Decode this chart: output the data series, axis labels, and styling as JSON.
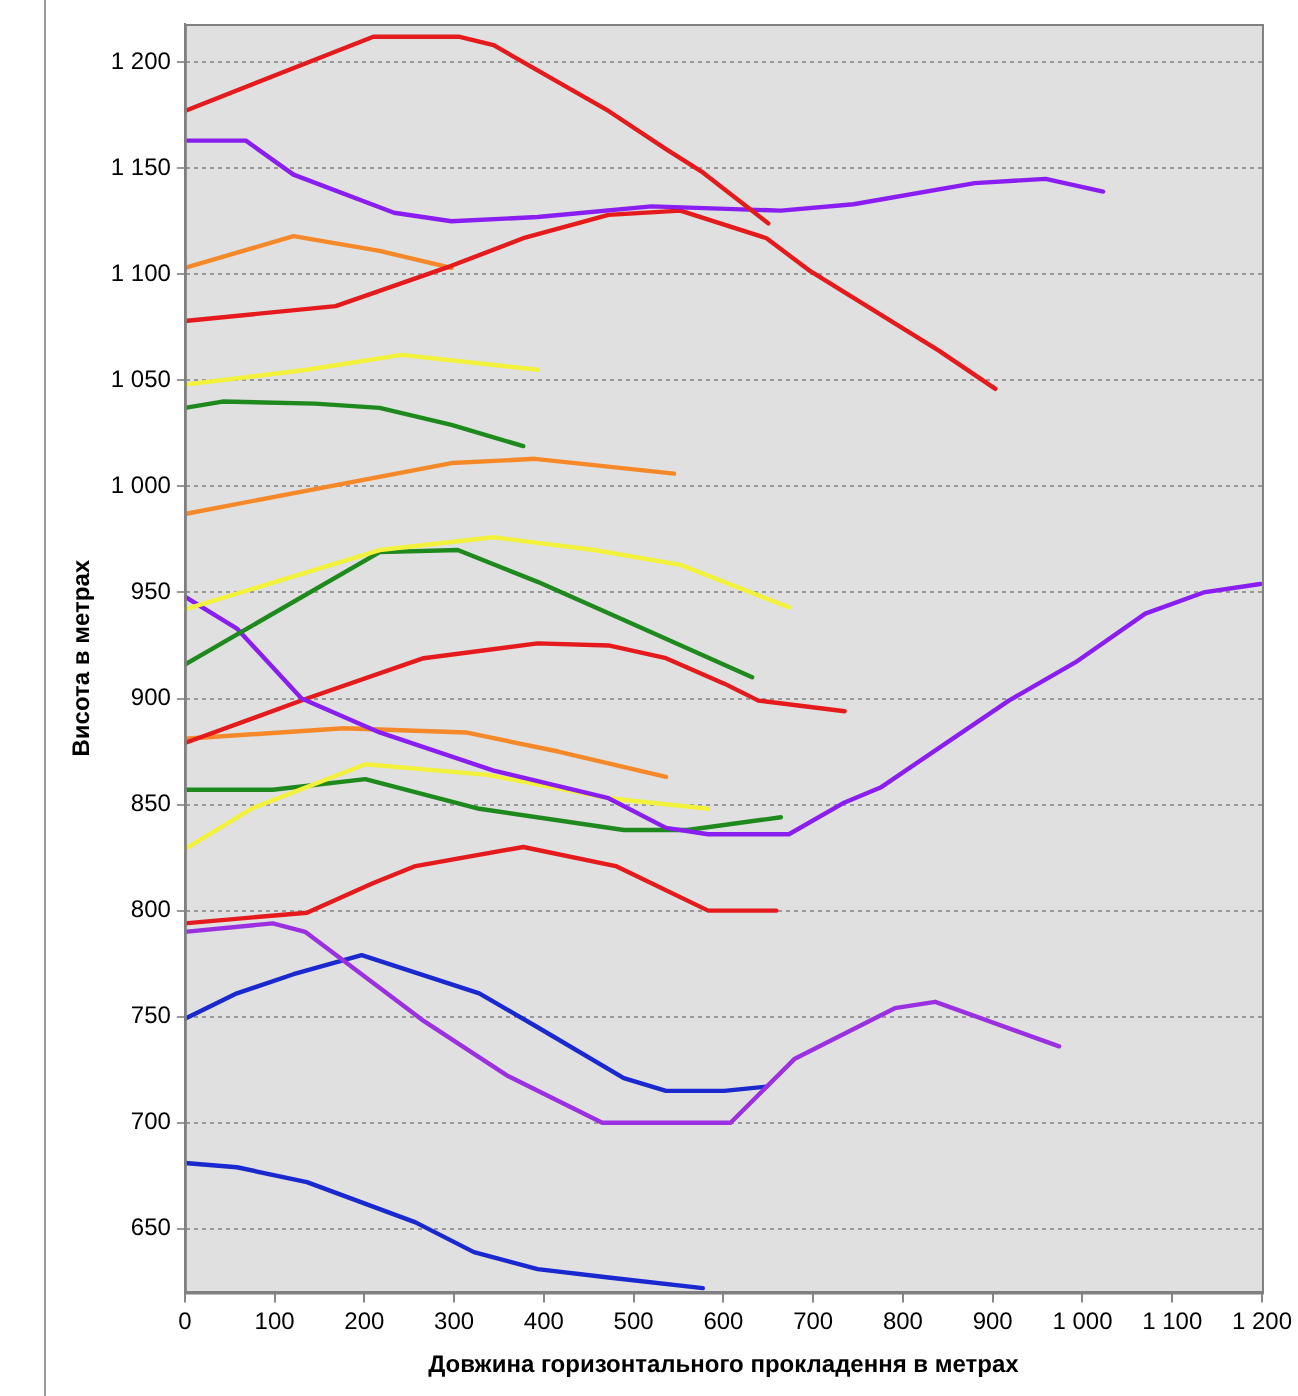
{
  "chart_data": {
    "type": "line",
    "xlabel": "Довжина горизонтального прокладення в метрах",
    "ylabel": "Висота в метрах",
    "xlim": [
      0,
      1200
    ],
    "ylim": [
      620,
      1218
    ],
    "xticks": [
      0,
      100,
      200,
      300,
      400,
      500,
      600,
      700,
      800,
      900,
      {
        "value": 1000,
        "label": "1 000"
      },
      {
        "value": 1100,
        "label": "1 100"
      },
      {
        "value": 1200,
        "label": "1 200"
      }
    ],
    "yticks": [
      650,
      700,
      750,
      800,
      850,
      900,
      950,
      {
        "value": 1000,
        "label": "1 000"
      },
      {
        "value": 1050,
        "label": "1 050"
      },
      {
        "value": 1100,
        "label": "1 100"
      },
      {
        "value": 1150,
        "label": "1 150"
      },
      {
        "value": 1200,
        "label": "1 200"
      }
    ],
    "grid": "y",
    "legend": false,
    "marker": "none",
    "line_style": "solid",
    "series": [
      {
        "color": "#e41a1c",
        "x": [
          0,
          210,
          305,
          344,
          472,
          536,
          577,
          650
        ],
        "values": [
          1177,
          1212,
          1212,
          1208,
          1177,
          1159,
          1148,
          1124
        ]
      },
      {
        "color": "#8a1ef0",
        "x": [
          0,
          68,
          121,
          233,
          297,
          393,
          520,
          664,
          745,
          880,
          959,
          1023
        ],
        "values": [
          1163,
          1163,
          1147,
          1129,
          1125,
          1127,
          1132,
          1130,
          1133,
          1143,
          1145,
          1139
        ]
      },
      {
        "color": "#e41a1c",
        "x": [
          0,
          168,
          297,
          377,
          472,
          552,
          648,
          695,
          840,
          903
        ],
        "values": [
          1078,
          1085,
          1104,
          1117,
          1128,
          1130,
          1117,
          1102,
          1064,
          1046
        ]
      },
      {
        "color": "#f5892a",
        "x": [
          0,
          121,
          217,
          297
        ],
        "values": [
          1103,
          1118,
          1111,
          1103
        ]
      },
      {
        "color": "#f2f23c",
        "x": [
          0,
          136,
          241,
          393
        ],
        "values": [
          1048,
          1055,
          1062,
          1055
        ]
      },
      {
        "color": "#1e8a1e",
        "x": [
          0,
          42,
          145,
          217,
          297,
          377
        ],
        "values": [
          1037,
          1040,
          1039,
          1037,
          1029,
          1019
        ]
      },
      {
        "color": "#f5892a",
        "x": [
          0,
          297,
          390,
          545
        ],
        "values": [
          987,
          1011,
          1013,
          1006
        ]
      },
      {
        "color": "#f2f23c",
        "x": [
          0,
          217,
          344,
          456,
          552,
          673
        ],
        "values": [
          942,
          970,
          976,
          970,
          963,
          943
        ]
      },
      {
        "color": "#1e8a1e",
        "x": [
          0,
          217,
          304,
          393,
          489,
          632
        ],
        "values": [
          916,
          969,
          970,
          955,
          937,
          910
        ]
      },
      {
        "color": "#8a1ef0",
        "x": [
          0,
          58,
          130,
          217,
          344,
          472,
          536,
          583,
          673,
          735,
          775,
          918,
          992,
          1070,
          1135,
          1198
        ],
        "values": [
          948,
          933,
          900,
          884,
          866,
          853,
          839,
          836,
          836,
          851,
          858,
          899,
          917,
          940,
          950,
          954
        ]
      },
      {
        "color": "#e41a1c",
        "x": [
          0,
          136,
          266,
          393,
          472,
          536,
          601,
          639,
          735
        ],
        "values": [
          879,
          900,
          919,
          926,
          925,
          919,
          907,
          899,
          894
        ]
      },
      {
        "color": "#f5892a",
        "x": [
          0,
          177,
          313,
          416,
          536
        ],
        "values": [
          881,
          886,
          884,
          875,
          863
        ]
      },
      {
        "color": "#f2f23c",
        "x": [
          0,
          74,
          201,
          337,
          472,
          583
        ],
        "values": [
          829,
          848,
          869,
          864,
          853,
          848
        ]
      },
      {
        "color": "#1e8a1e",
        "x": [
          0,
          98,
          201,
          328,
          489,
          560,
          664
        ],
        "values": [
          857,
          857,
          862,
          848,
          838,
          838,
          844
        ]
      },
      {
        "color": "#e41a1c",
        "x": [
          0,
          136,
          210,
          257,
          377,
          480,
          583,
          659
        ],
        "values": [
          794,
          799,
          813,
          821,
          830,
          821,
          800,
          800
        ]
      },
      {
        "color": "#9b30e0",
        "x": [
          0,
          98,
          134,
          266,
          360,
          465,
          608,
          679,
          791,
          836,
          974
        ],
        "values": [
          790,
          794,
          790,
          748,
          722,
          700,
          700,
          730,
          754,
          757,
          736
        ]
      },
      {
        "color": "#1a28d0",
        "x": [
          0,
          58,
          121,
          197,
          328,
          393,
          489,
          536,
          601,
          648
        ],
        "values": [
          749,
          761,
          770,
          779,
          761,
          745,
          721,
          715,
          715,
          717
        ]
      },
      {
        "color": "#1a28d0",
        "x": [
          0,
          58,
          136,
          257,
          322,
          393,
          472,
          577
        ],
        "values": [
          681,
          679,
          672,
          653,
          639,
          631,
          627,
          622
        ]
      }
    ]
  }
}
